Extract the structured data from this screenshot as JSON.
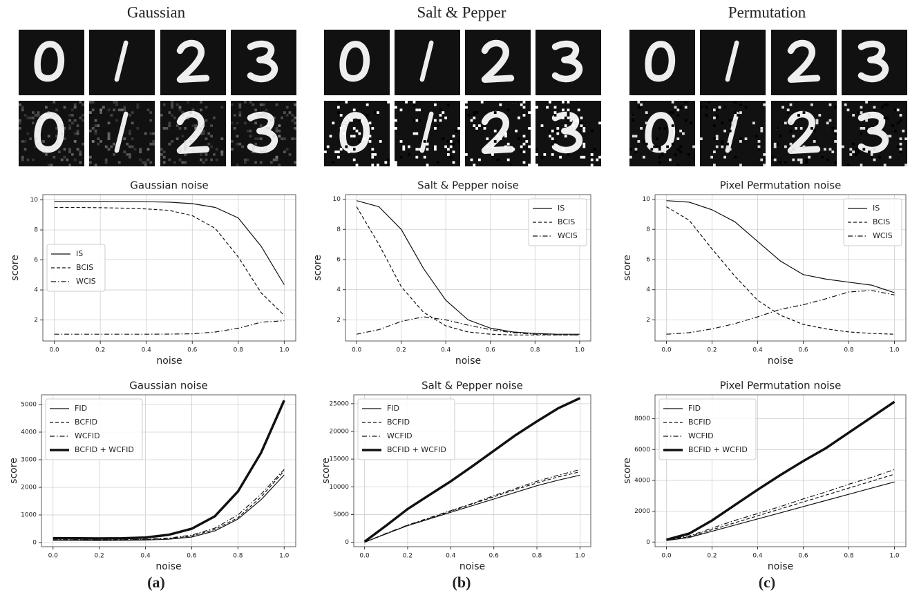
{
  "panels": [
    {
      "title": "Gaussian",
      "label": "(a)"
    },
    {
      "title": "Salt & Pepper",
      "label": "(b)"
    },
    {
      "title": "Permutation",
      "label": "(c)"
    }
  ],
  "chart_data": [
    {
      "type": "line",
      "title": "Gaussian noise",
      "xlabel": "noise",
      "ylabel": "score",
      "grid": true,
      "legend": "center left",
      "x": [
        0,
        0.1,
        0.2,
        0.3,
        0.4,
        0.5,
        0.6,
        0.7,
        0.8,
        0.9,
        1
      ],
      "xlim": [
        -0.05,
        1.05
      ],
      "xticks": [
        {
          "value": 0,
          "label": "0.0"
        },
        0.2,
        0.4,
        0.6,
        0.8,
        {
          "value": 1,
          "label": "1.0"
        }
      ],
      "ylim": [
        0.6,
        10.35
      ],
      "yticks": [
        2,
        4,
        6,
        8,
        10
      ],
      "series": [
        {
          "name": "IS",
          "color": "#111111",
          "dash": "solid",
          "width": 1.2,
          "values": [
            9.9,
            9.9,
            9.9,
            9.9,
            9.88,
            9.85,
            9.75,
            9.5,
            8.8,
            6.9,
            4.35
          ]
        },
        {
          "name": "BCIS",
          "color": "#111111",
          "dash": "dashed",
          "width": 1.2,
          "values": [
            9.5,
            9.5,
            9.48,
            9.45,
            9.4,
            9.3,
            8.95,
            8.1,
            6.2,
            3.8,
            2.3
          ]
        },
        {
          "name": "WCIS",
          "color": "#111111",
          "dash": "dashdot",
          "width": 1.2,
          "values": [
            1.05,
            1.05,
            1.05,
            1.05,
            1.05,
            1.06,
            1.08,
            1.2,
            1.45,
            1.85,
            1.95
          ]
        }
      ]
    },
    {
      "type": "line",
      "title": "Salt & Pepper noise",
      "xlabel": "noise",
      "ylabel": "score",
      "grid": true,
      "legend": "upper right",
      "x": [
        0,
        0.1,
        0.2,
        0.3,
        0.4,
        0.5,
        0.6,
        0.7,
        0.8,
        0.9,
        1
      ],
      "xlim": [
        -0.05,
        1.05
      ],
      "xticks": [
        {
          "value": 0,
          "label": "0.0"
        },
        0.2,
        0.4,
        0.6,
        0.8,
        {
          "value": 1,
          "label": "1.0"
        }
      ],
      "ylim": [
        0.6,
        10.3
      ],
      "yticks": [
        2,
        4,
        6,
        8,
        10
      ],
      "series": [
        {
          "name": "IS",
          "color": "#111111",
          "dash": "solid",
          "width": 1.2,
          "values": [
            9.9,
            9.5,
            8.0,
            5.4,
            3.3,
            2.0,
            1.45,
            1.2,
            1.1,
            1.05,
            1.05
          ]
        },
        {
          "name": "BCIS",
          "color": "#111111",
          "dash": "dashed",
          "width": 1.2,
          "values": [
            9.5,
            7.0,
            4.2,
            2.5,
            1.6,
            1.2,
            1.05,
            1.0,
            1.0,
            1.0,
            1.0
          ]
        },
        {
          "name": "WCIS",
          "color": "#111111",
          "dash": "dashdot",
          "width": 1.2,
          "values": [
            1.05,
            1.35,
            1.9,
            2.2,
            2.0,
            1.65,
            1.35,
            1.15,
            1.05,
            1.0,
            1.0
          ]
        }
      ]
    },
    {
      "type": "line",
      "title": "Pixel Permutation noise",
      "xlabel": "noise",
      "ylabel": "score",
      "grid": true,
      "legend": "upper right",
      "x": [
        0,
        0.1,
        0.2,
        0.3,
        0.4,
        0.5,
        0.6,
        0.7,
        0.8,
        0.9,
        1
      ],
      "xlim": [
        -0.05,
        1.05
      ],
      "xticks": [
        {
          "value": 0,
          "label": "0.0"
        },
        0.2,
        0.4,
        0.6,
        0.8,
        {
          "value": 1,
          "label": "1.0"
        }
      ],
      "ylim": [
        0.6,
        10.3
      ],
      "yticks": [
        2,
        4,
        6,
        8,
        10
      ],
      "series": [
        {
          "name": "IS",
          "color": "#111111",
          "dash": "solid",
          "width": 1.2,
          "values": [
            9.9,
            9.8,
            9.3,
            8.5,
            7.2,
            5.9,
            5.0,
            4.7,
            4.5,
            4.3,
            3.8
          ]
        },
        {
          "name": "BCIS",
          "color": "#111111",
          "dash": "dashed",
          "width": 1.2,
          "values": [
            9.5,
            8.6,
            6.7,
            4.9,
            3.3,
            2.3,
            1.7,
            1.4,
            1.2,
            1.1,
            1.05
          ]
        },
        {
          "name": "WCIS",
          "color": "#111111",
          "dash": "dashdot",
          "width": 1.2,
          "values": [
            1.05,
            1.15,
            1.4,
            1.75,
            2.2,
            2.7,
            3.0,
            3.4,
            3.85,
            3.95,
            3.65
          ]
        }
      ]
    },
    {
      "type": "line",
      "title": "Gaussian noise",
      "xlabel": "noise",
      "ylabel": "score",
      "grid": true,
      "legend": "upper left",
      "x": [
        0,
        0.1,
        0.2,
        0.3,
        0.4,
        0.5,
        0.6,
        0.7,
        0.8,
        0.9,
        1
      ],
      "xlim": [
        -0.05,
        1.05
      ],
      "xticks": [
        {
          "value": 0,
          "label": "0.0"
        },
        0.2,
        0.4,
        0.6,
        0.8,
        {
          "value": 1,
          "label": "1.0"
        }
      ],
      "ylim": [
        -150,
        5350
      ],
      "yticks": [
        0,
        1000,
        2000,
        3000,
        4000,
        5000
      ],
      "series": [
        {
          "name": "FID",
          "color": "#111111",
          "dash": "solid",
          "width": 1.2,
          "values": [
            80,
            80,
            75,
            80,
            90,
            120,
            200,
            420,
            850,
            1550,
            2450
          ]
        },
        {
          "name": "BCFID",
          "color": "#111111",
          "dash": "dashed",
          "width": 1.2,
          "values": [
            90,
            90,
            90,
            95,
            110,
            140,
            240,
            470,
            900,
            1650,
            2600
          ]
        },
        {
          "name": "WCFID",
          "color": "#111111",
          "dash": "dashdot",
          "width": 1.2,
          "values": [
            100,
            100,
            100,
            105,
            120,
            160,
            270,
            520,
            1000,
            1750,
            2650
          ]
        },
        {
          "name": "BCFID + WCFID",
          "color": "#111111",
          "dash": "solid",
          "width": 3.5,
          "values": [
            160,
            155,
            150,
            155,
            180,
            280,
            500,
            950,
            1850,
            3250,
            5150
          ]
        }
      ]
    },
    {
      "type": "line",
      "title": "Salt & Pepper noise",
      "xlabel": "noise",
      "ylabel": "score",
      "grid": true,
      "legend": "upper left",
      "x": [
        0,
        0.1,
        0.2,
        0.3,
        0.4,
        0.5,
        0.6,
        0.7,
        0.8,
        0.9,
        1
      ],
      "xlim": [
        -0.05,
        1.05
      ],
      "xticks": [
        {
          "value": 0,
          "label": "0.0"
        },
        0.2,
        0.4,
        0.6,
        0.8,
        {
          "value": 1,
          "label": "1.0"
        }
      ],
      "ylim": [
        -800,
        26600
      ],
      "yticks": [
        0,
        5000,
        10000,
        15000,
        20000,
        25000
      ],
      "series": [
        {
          "name": "FID",
          "color": "#111111",
          "dash": "solid",
          "width": 1.2,
          "values": [
            0,
            1500,
            3000,
            4200,
            5400,
            6600,
            7800,
            9000,
            10200,
            11200,
            12100
          ]
        },
        {
          "name": "BCFID",
          "color": "#111111",
          "dash": "dashed",
          "width": 1.2,
          "values": [
            0,
            1550,
            3050,
            4300,
            5600,
            6900,
            8200,
            9500,
            10700,
            11800,
            12700
          ]
        },
        {
          "name": "WCFID",
          "color": "#111111",
          "dash": "dashdot",
          "width": 1.2,
          "values": [
            0,
            1600,
            3100,
            4400,
            5700,
            7000,
            8400,
            9700,
            11000,
            12100,
            13100
          ]
        },
        {
          "name": "BCFID + WCFID",
          "color": "#111111",
          "dash": "solid",
          "width": 3.5,
          "values": [
            100,
            3000,
            6000,
            8500,
            11000,
            13700,
            16500,
            19300,
            21800,
            24200,
            26000
          ]
        }
      ]
    },
    {
      "type": "line",
      "title": "Pixel Permutation noise",
      "xlabel": "noise",
      "ylabel": "score",
      "grid": true,
      "legend": "upper left",
      "x": [
        0,
        0.1,
        0.2,
        0.3,
        0.4,
        0.5,
        0.6,
        0.7,
        0.8,
        0.9,
        1
      ],
      "xlim": [
        -0.05,
        1.05
      ],
      "xticks": [
        {
          "value": 0,
          "label": "0.0"
        },
        0.2,
        0.4,
        0.6,
        0.8,
        {
          "value": 1,
          "label": "1.0"
        }
      ],
      "ylim": [
        -300,
        9550
      ],
      "yticks": [
        0,
        2000,
        4000,
        6000,
        8000
      ],
      "series": [
        {
          "name": "FID",
          "color": "#111111",
          "dash": "solid",
          "width": 1.2,
          "values": [
            100,
            300,
            700,
            1100,
            1500,
            1900,
            2300,
            2700,
            3100,
            3500,
            3900
          ]
        },
        {
          "name": "BCFID",
          "color": "#111111",
          "dash": "dashed",
          "width": 1.2,
          "values": [
            120,
            350,
            800,
            1250,
            1700,
            2150,
            2600,
            3050,
            3500,
            3950,
            4400
          ]
        },
        {
          "name": "WCFID",
          "color": "#111111",
          "dash": "dashdot",
          "width": 1.2,
          "values": [
            150,
            400,
            900,
            1400,
            1850,
            2300,
            2800,
            3250,
            3750,
            4200,
            4700
          ]
        },
        {
          "name": "BCFID + WCFID",
          "color": "#111111",
          "dash": "solid",
          "width": 3.5,
          "values": [
            150,
            550,
            1400,
            2400,
            3400,
            4350,
            5250,
            6100,
            7100,
            8100,
            9100
          ]
        }
      ]
    }
  ]
}
